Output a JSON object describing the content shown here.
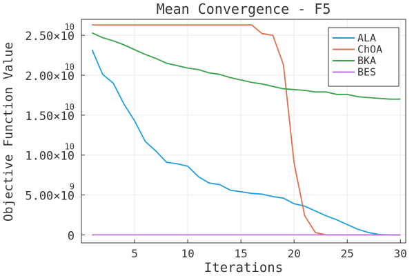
{
  "chart_data": {
    "type": "line",
    "title": "Mean Convergence - F5",
    "xlabel": "Iterations",
    "ylabel": "Objective Function Value",
    "xlim": [
      0,
      30.5
    ],
    "ylim": [
      -1000000000,
      27000000000
    ],
    "grid": true,
    "legend_position": "top-right",
    "x_ticks": [
      5,
      10,
      15,
      20,
      25,
      30
    ],
    "x_tick_labels": [
      "5",
      "10",
      "15",
      "20",
      "25",
      "30"
    ],
    "y_ticks": [
      0,
      5000000000,
      10000000000,
      15000000000,
      20000000000,
      25000000000
    ],
    "y_tick_labels": [
      {
        "mantissa": "0",
        "exp": ""
      },
      {
        "mantissa": "5.00×10",
        "exp": "9"
      },
      {
        "mantissa": "1.00×10",
        "exp": "10"
      },
      {
        "mantissa": "1.50×10",
        "exp": "10"
      },
      {
        "mantissa": "2.00×10",
        "exp": "10"
      },
      {
        "mantissa": "2.50×10",
        "exp": "10"
      }
    ],
    "x": [
      1,
      2,
      3,
      4,
      5,
      6,
      7,
      8,
      9,
      10,
      11,
      12,
      13,
      14,
      15,
      16,
      17,
      18,
      19,
      20,
      21,
      22,
      23,
      24,
      25,
      26,
      27,
      28,
      29,
      30
    ],
    "series": [
      {
        "name": "ALA",
        "color": "#1f9fe0",
        "values": [
          23200000000,
          20100000000,
          19000000000,
          16400000000,
          14300000000,
          11700000000,
          10500000000,
          9100000000,
          8900000000,
          8600000000,
          7300000000,
          6500000000,
          6300000000,
          5600000000,
          5400000000,
          5200000000,
          5100000000,
          4800000000,
          4600000000,
          3900000000,
          3600000000,
          3000000000,
          2400000000,
          1900000000,
          1300000000,
          700000000,
          300000000,
          50000000,
          0,
          0
        ]
      },
      {
        "name": "ChOA",
        "color": "#e0704a",
        "values": [
          26300000000,
          26300000000,
          26300000000,
          26300000000,
          26300000000,
          26300000000,
          26300000000,
          26300000000,
          26300000000,
          26300000000,
          26300000000,
          26300000000,
          26300000000,
          26300000000,
          26300000000,
          26300000000,
          25200000000,
          25000000000,
          21300000000,
          9000000000,
          2400000000,
          300000000,
          0,
          0,
          0,
          0,
          0,
          0,
          0,
          0
        ]
      },
      {
        "name": "BKA",
        "color": "#3aa24a",
        "values": [
          25300000000,
          24700000000,
          24300000000,
          23800000000,
          23200000000,
          22600000000,
          22100000000,
          21500000000,
          21200000000,
          20900000000,
          20700000000,
          20300000000,
          20100000000,
          19700000000,
          19400000000,
          19100000000,
          18900000000,
          18600000000,
          18300000000,
          18200000000,
          18100000000,
          17900000000,
          17900000000,
          17600000000,
          17600000000,
          17300000000,
          17200000000,
          17100000000,
          17000000000,
          17000000000
        ]
      },
      {
        "name": "BES",
        "color": "#b86fd8",
        "values": [
          0,
          0,
          0,
          0,
          0,
          0,
          0,
          0,
          0,
          0,
          0,
          0,
          0,
          0,
          0,
          0,
          0,
          0,
          0,
          0,
          0,
          0,
          0,
          0,
          0,
          0,
          0,
          0,
          0,
          0
        ]
      }
    ]
  }
}
